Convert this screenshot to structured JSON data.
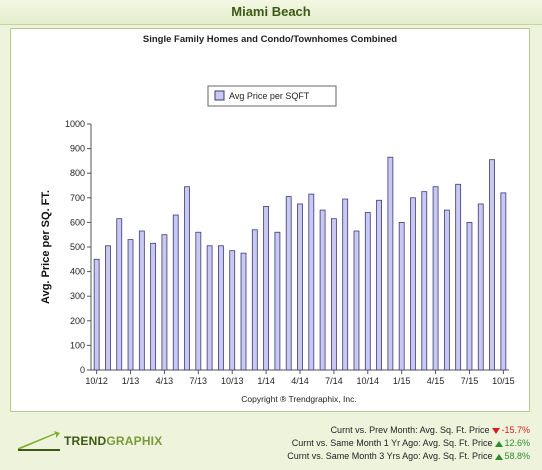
{
  "header": {
    "title": "Miami Beach"
  },
  "brand": {
    "name_bold": "TREND",
    "name_light": "GRAPHIX"
  },
  "stats": [
    {
      "label": "Curnt vs. Prev Month: Avg. Sq. Ft. Price",
      "value": "-15.7%",
      "direction": "down"
    },
    {
      "label": "Curnt vs. Same Month 1 Yr Ago: Avg. Sq. Ft. Price",
      "value": "12.6%",
      "direction": "up"
    },
    {
      "label": "Curnt vs. Same Month 3 Yrs Ago: Avg. Sq. Ft. Price",
      "value": "58.8%",
      "direction": "up"
    }
  ],
  "colors": {
    "bar_fill": "#c9c8f0",
    "bar_stroke": "#3a3a7a",
    "up": "#2e8b2e",
    "down": "#d02020"
  },
  "chart_data": {
    "type": "bar",
    "title": "Single Family Homes and Condo/Townhomes Combined",
    "ylabel": "Avg. Price per SQ. FT.",
    "xlabel": "",
    "copyright": "Copyright ® Trendgraphix, Inc.",
    "ylim": [
      0,
      1000
    ],
    "yticks": [
      0,
      100,
      200,
      300,
      400,
      500,
      600,
      700,
      800,
      900,
      1000
    ],
    "legend_position": "top-center",
    "grid": false,
    "series": [
      {
        "name": "Avg Price per SQFT",
        "values": [
          450,
          505,
          615,
          530,
          565,
          515,
          550,
          630,
          745,
          560,
          505,
          505,
          485,
          475,
          570,
          665,
          560,
          705,
          675,
          715,
          650,
          615,
          695,
          565,
          640,
          690,
          865,
          600,
          700,
          725,
          745,
          650,
          755,
          600,
          675,
          855,
          720
        ]
      }
    ],
    "x_tick_labels": [
      {
        "index": 0,
        "label": "10/12"
      },
      {
        "index": 3,
        "label": "1/13"
      },
      {
        "index": 6,
        "label": "4/13"
      },
      {
        "index": 9,
        "label": "7/13"
      },
      {
        "index": 12,
        "label": "10/13"
      },
      {
        "index": 15,
        "label": "1/14"
      },
      {
        "index": 18,
        "label": "4/14"
      },
      {
        "index": 21,
        "label": "7/14"
      },
      {
        "index": 24,
        "label": "10/14"
      },
      {
        "index": 27,
        "label": "1/15"
      },
      {
        "index": 30,
        "label": "4/15"
      },
      {
        "index": 33,
        "label": "7/15"
      },
      {
        "index": 36,
        "label": "10/15"
      }
    ]
  }
}
